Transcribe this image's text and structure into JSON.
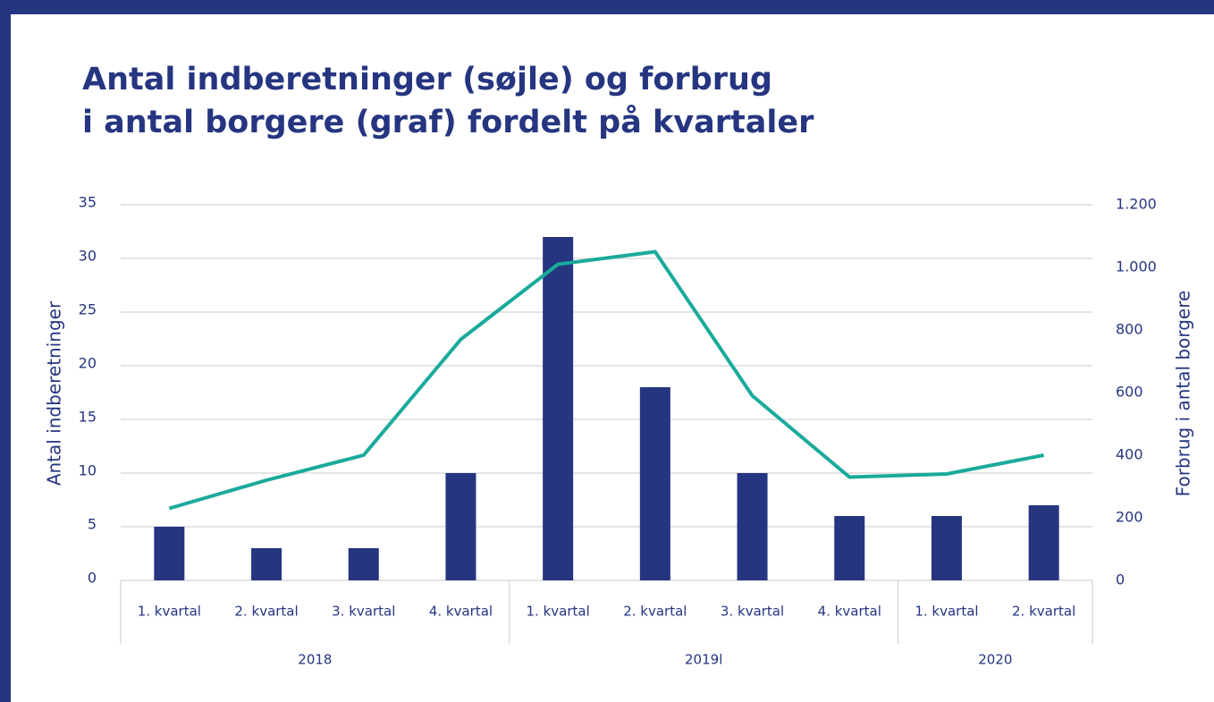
{
  "chart_data": {
    "type": "bar",
    "title": [
      "Antal indberetninger (søjle) og forbrug",
      "i antal borgere (graf) fordelt på kvartaler"
    ],
    "ylabel": "Antal indberetninger",
    "y2label": "Forbrug i antal borgere",
    "categories": [
      "1. kvartal",
      "2. kvartal",
      "3. kvartal",
      "4. kvartal",
      "1. kvartal",
      "2. kvartal",
      "3. kvartal",
      "4. kvartal",
      "1. kvartal",
      "2. kvartal"
    ],
    "group_labels": [
      "2018",
      null,
      null,
      null,
      "2019l",
      null,
      null,
      null,
      "2020",
      null
    ],
    "series": [
      {
        "type": "bar",
        "color": "#253580",
        "values": [
          5,
          3,
          3,
          10,
          32,
          18,
          10,
          6,
          6,
          7
        ]
      },
      {
        "type": "line",
        "axis": "y2",
        "color": "#1aaa9b",
        "values": [
          230,
          320,
          400,
          770,
          1010,
          1050,
          590,
          330,
          340,
          400
        ]
      }
    ],
    "ylim": [
      0,
      35
    ],
    "yticks": [
      0,
      5,
      10,
      15,
      20,
      25,
      30,
      35
    ],
    "y2lim": [
      0,
      1200
    ],
    "y2ticks": [
      0,
      200,
      400,
      600,
      800,
      {
        "value": 1000,
        "label": "1.000"
      },
      {
        "value": 1200,
        "label": "1.200"
      }
    ],
    "grid": true
  }
}
